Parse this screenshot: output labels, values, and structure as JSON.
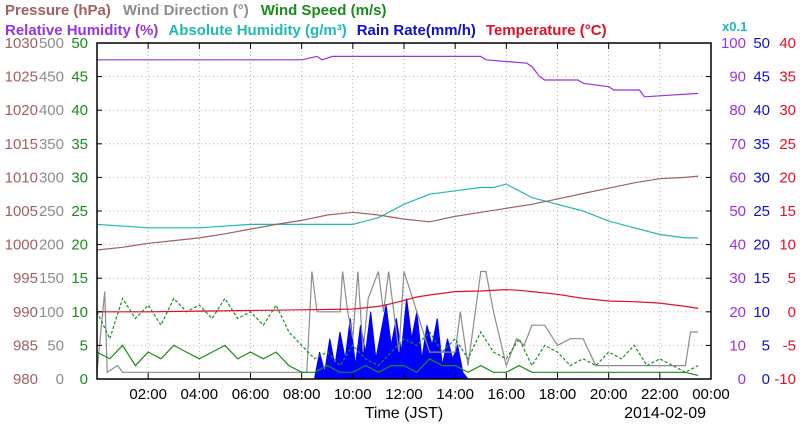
{
  "chart_data": {
    "type": "line",
    "date": "2014-02-09",
    "xlabel": "Time (JST)",
    "x_ticks": [
      "02:00",
      "04:00",
      "06:00",
      "08:00",
      "10:00",
      "12:00",
      "14:00",
      "16:00",
      "18:00",
      "20:00",
      "22:00",
      "00:00"
    ],
    "x_range_hours": [
      0,
      24
    ],
    "headers": {
      "row1": [
        {
          "text": "Pressure (hPa)",
          "color": "#a0605f"
        },
        {
          "text": "Wind Direction (°)",
          "color": "#8c8c8c"
        },
        {
          "text": "Wind Speed (m/s)",
          "color": "#1a8c1a"
        }
      ],
      "row2": [
        {
          "text": "Relative Humidity (%)",
          "color": "#9933dd"
        },
        {
          "text": "Absolute Humidity (g/m³)",
          "color": "#22b8b8"
        },
        {
          "text": "Rain Rate(mm/h)",
          "color": "#1010c8"
        },
        {
          "text": "Temperature (°C)",
          "color": "#e0102a"
        }
      ],
      "scale_note": {
        "text": "x0.1",
        "color": "#22b8b8"
      }
    },
    "axes": {
      "pressure": {
        "color": "#a0605f",
        "range": [
          980,
          1030
        ],
        "ticks": [
          "1030",
          "1025",
          "1020",
          "1015",
          "1010",
          "1005",
          "1000",
          "995",
          "990",
          "985",
          "980"
        ]
      },
      "wind_direction": {
        "color": "#8c8c8c",
        "range": [
          0,
          500
        ],
        "ticks": [
          "500",
          "450",
          "400",
          "350",
          "300",
          "250",
          "200",
          "150",
          "100",
          "50",
          "0"
        ]
      },
      "wind_speed": {
        "color": "#1a8c1a",
        "range": [
          0,
          50
        ],
        "ticks": [
          "50",
          "45",
          "40",
          "35",
          "30",
          "25",
          "20",
          "15",
          "10",
          "5",
          "0"
        ]
      },
      "humidity": {
        "color": "#9933dd",
        "range": [
          0,
          100
        ],
        "ticks": [
          "100",
          "90",
          "80",
          "70",
          "60",
          "50",
          "40",
          "30",
          "20",
          "10",
          "0"
        ]
      },
      "rain_rate": {
        "color": "#1010c8",
        "range": [
          0,
          50
        ],
        "ticks": [
          "50",
          "45",
          "40",
          "35",
          "30",
          "25",
          "20",
          "15",
          "10",
          "5",
          "0"
        ]
      },
      "temperature": {
        "color": "#e0102a",
        "range": [
          -10,
          40
        ],
        "ticks": [
          "40",
          "35",
          "30",
          "25",
          "20",
          "15",
          "10",
          "5",
          "0",
          "-5",
          "-10"
        ]
      }
    },
    "series": [
      {
        "name": "Relative Humidity",
        "axis": "humidity",
        "color": "#9933dd",
        "x": [
          0,
          8,
          8.6,
          8.8,
          9.2,
          15,
          15.2,
          16.8,
          17.0,
          17.3,
          17.5,
          18.8,
          19.0,
          20.0,
          20.2,
          21.2,
          21.4,
          23.5
        ],
        "y": [
          95,
          95,
          96,
          95,
          96,
          96,
          95,
          94,
          93,
          90,
          89,
          89,
          88,
          87,
          86,
          86,
          84,
          85
        ]
      },
      {
        "name": "Absolute Humidity",
        "axis": "humidity",
        "color": "#22b8b8",
        "x": [
          0,
          2,
          4,
          6,
          8,
          10,
          11,
          11.5,
          12,
          13,
          14,
          15,
          15.5,
          16,
          16.5,
          17,
          18,
          19,
          20,
          21,
          22,
          23,
          23.5
        ],
        "y": [
          46,
          45,
          45,
          46,
          46,
          46,
          48,
          50,
          52,
          55,
          56,
          57,
          57,
          58,
          56,
          54,
          52,
          50,
          47,
          45,
          43,
          42,
          42
        ]
      },
      {
        "name": "Pressure",
        "axis": "pressure",
        "color": "#a0605f",
        "x": [
          0,
          1,
          2,
          3,
          4,
          5,
          6,
          7,
          8,
          9,
          10,
          11,
          12,
          13,
          14,
          15,
          16,
          17,
          18,
          19,
          20,
          21,
          22,
          23,
          23.5
        ],
        "y": [
          999.2,
          999.6,
          1000.2,
          1000.6,
          1001.0,
          1001.6,
          1002.3,
          1003.0,
          1003.6,
          1004.4,
          1004.8,
          1004.4,
          1003.8,
          1003.4,
          1004.2,
          1004.8,
          1005.4,
          1006.0,
          1006.8,
          1007.6,
          1008.4,
          1009.2,
          1009.8,
          1010.0,
          1010.2
        ]
      },
      {
        "name": "Temperature",
        "axis": "temperature",
        "color": "#e0102a",
        "x": [
          0,
          2,
          4,
          6,
          8,
          10,
          11,
          11.5,
          12,
          12.5,
          13,
          14,
          15,
          16,
          16.5,
          17,
          18,
          19,
          20,
          21,
          22,
          23,
          23.5
        ],
        "y": [
          0.0,
          0.0,
          0.1,
          0.2,
          0.3,
          0.4,
          0.8,
          1.2,
          1.7,
          2.2,
          2.5,
          3.0,
          3.1,
          3.3,
          3.2,
          3.0,
          2.6,
          2.0,
          1.6,
          1.5,
          1.3,
          0.8,
          0.5
        ]
      },
      {
        "name": "Wind Speed (max)",
        "axis": "wind_speed",
        "color": "#1a8c1a",
        "dashed": true,
        "x": [
          0,
          0.5,
          1,
          1.5,
          2,
          2.5,
          3,
          3.5,
          4,
          4.5,
          5,
          5.5,
          6,
          6.5,
          7,
          7.5,
          8,
          8.5,
          9,
          9.5,
          10,
          10.5,
          11,
          11.5,
          12,
          12.5,
          13,
          13.5,
          14,
          14.5,
          15,
          15.5,
          16,
          16.5,
          17,
          17.5,
          18,
          18.5,
          19,
          19.5,
          20,
          20.5,
          21,
          21.5,
          22,
          22.5,
          23,
          23.5
        ],
        "y": [
          10,
          6,
          12,
          9,
          11,
          8,
          12,
          10,
          11,
          9,
          12,
          9,
          10,
          8,
          11,
          7,
          5,
          3,
          4,
          2,
          5,
          3,
          2,
          4,
          6,
          5,
          7,
          4,
          6,
          3,
          7,
          4,
          3,
          6,
          2,
          5,
          4,
          2,
          3,
          2,
          4,
          3,
          5,
          2,
          3,
          2,
          1,
          2
        ]
      },
      {
        "name": "Wind Speed (avg)",
        "axis": "wind_speed",
        "color": "#1a8c1a",
        "x": [
          0,
          0.5,
          1,
          1.5,
          2,
          2.5,
          3,
          3.5,
          4,
          4.5,
          5,
          5.5,
          6,
          6.5,
          7,
          7.5,
          8,
          8.5,
          9,
          9.5,
          10,
          10.5,
          11,
          11.5,
          12,
          12.5,
          13,
          13.5,
          14,
          14.5,
          15,
          15.5,
          16,
          16.5,
          17,
          17.5,
          18,
          18.5,
          19,
          19.5,
          20,
          20.5,
          21,
          21.5,
          22,
          22.5,
          23,
          23.5
        ],
        "y": [
          4,
          3,
          5,
          2,
          4,
          3,
          5,
          4,
          3,
          4,
          5,
          3,
          4,
          3,
          4,
          2,
          1,
          1,
          2,
          1,
          1,
          2,
          1,
          2,
          2,
          1,
          3,
          2,
          2,
          1,
          2,
          1,
          1,
          2,
          1,
          1,
          1,
          1,
          1,
          1,
          1,
          1,
          1,
          1,
          1,
          1,
          1,
          0.5
        ]
      },
      {
        "name": "Wind Direction",
        "axis": "wind_direction",
        "color": "#8c8c8c",
        "x": [
          0,
          0.3,
          0.4,
          0.8,
          1,
          8.2,
          8.4,
          8.6,
          9.5,
          9.6,
          9.8,
          10.0,
          10.2,
          10.4,
          10.6,
          11,
          11.2,
          11.4,
          11.8,
          12,
          13,
          14,
          14.2,
          14.5,
          15,
          15.2,
          15.5,
          16,
          16.4,
          16.7,
          17,
          17.5,
          18,
          18.5,
          19,
          19.5,
          20,
          20.5,
          21,
          22,
          23,
          23.2,
          23.5
        ],
        "y": [
          10,
          130,
          10,
          20,
          10,
          10,
          160,
          100,
          100,
          160,
          100,
          60,
          160,
          40,
          120,
          160,
          100,
          160,
          40,
          160,
          40,
          40,
          100,
          20,
          160,
          160,
          100,
          20,
          60,
          50,
          80,
          80,
          50,
          60,
          60,
          20,
          20,
          20,
          20,
          20,
          20,
          70,
          70
        ]
      },
      {
        "name": "Rain Rate",
        "axis": "rain_rate",
        "color": "#0000ff",
        "fill": true,
        "x": [
          8.5,
          8.7,
          8.9,
          9.1,
          9.3,
          9.5,
          9.7,
          9.9,
          10.1,
          10.3,
          10.5,
          10.7,
          10.9,
          11.1,
          11.3,
          11.5,
          11.7,
          11.9,
          12.1,
          12.3,
          12.5,
          12.7,
          12.9,
          13.1,
          13.3,
          13.5,
          13.7,
          13.9,
          14.1,
          14.3,
          14.5
        ],
        "y": [
          0,
          4,
          1,
          6,
          2,
          7,
          3,
          9,
          2,
          8,
          4,
          10,
          3,
          7,
          11,
          5,
          9,
          4,
          12,
          6,
          10,
          3,
          8,
          5,
          9,
          2,
          6,
          3,
          5,
          1,
          0
        ]
      }
    ]
  }
}
